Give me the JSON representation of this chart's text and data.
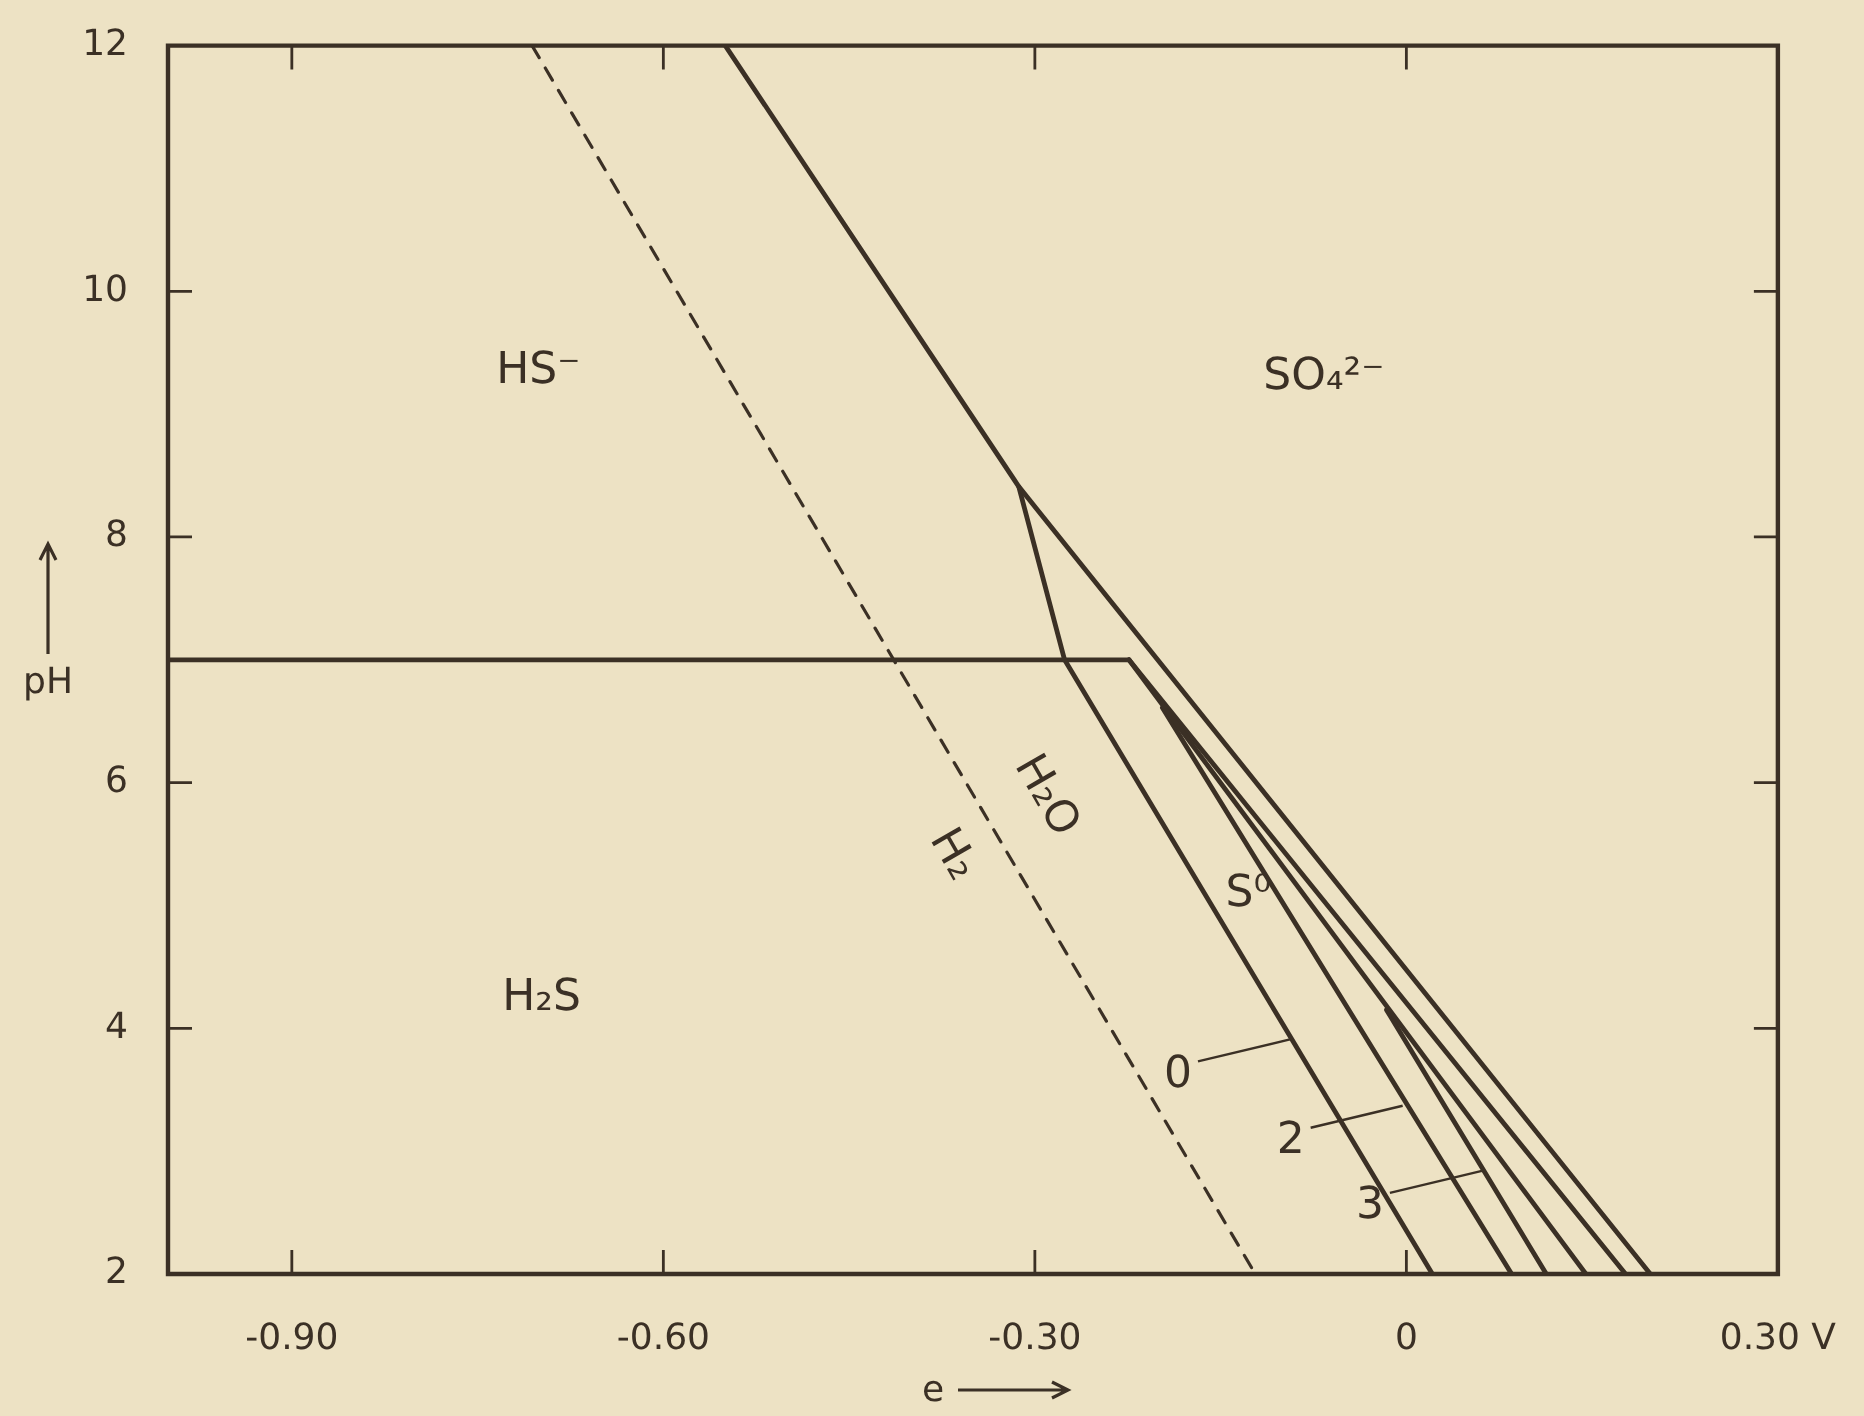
{
  "chart_data": {
    "type": "line",
    "xlabel": "e",
    "ylabel": "pH",
    "xlim": [
      -1.0,
      0.3
    ],
    "ylim": [
      2,
      12
    ],
    "xticks": [
      {
        "value": -0.9,
        "label": "-0.90"
      },
      {
        "value": -0.6,
        "label": "-0.60"
      },
      {
        "value": -0.3,
        "label": "-0.30"
      },
      0,
      {
        "value": 0.3,
        "label": "0.30 V"
      }
    ],
    "yticks": [
      2,
      4,
      6,
      8,
      10,
      12
    ],
    "grid": false,
    "legend": false,
    "marker": "none",
    "line_style": "solid",
    "series": [
      {
        "color": "#3b3025",
        "x": [
          -0.55,
          -0.313,
          0.197
        ],
        "values": [
          12,
          8.41,
          2
        ]
      },
      {
        "color": "#3b3025",
        "x": [
          -0.313,
          -0.276,
          0.021
        ],
        "values": [
          8.41,
          7,
          2
        ]
      },
      {
        "color": "#3b3025",
        "x": [
          -1.0,
          -0.224
        ],
        "values": [
          7,
          7
        ]
      },
      {
        "color": "#3b3025",
        "x": [
          -0.224,
          0.145
        ],
        "values": [
          7,
          2
        ]
      },
      {
        "color": "#3b3025",
        "x": [
          -0.224,
          0.177
        ],
        "values": [
          7,
          2
        ]
      },
      {
        "color": "#3b3025",
        "x": [
          -0.197,
          0.085
        ],
        "values": [
          6.61,
          2
        ]
      },
      {
        "color": "#3b3025",
        "x": [
          -0.016,
          0.113
        ],
        "values": [
          4.15,
          2
        ]
      },
      {
        "color": "#3b3025",
        "line_style": "dashed",
        "x": [
          -0.706,
          -0.122
        ],
        "values": [
          12,
          2
        ]
      }
    ],
    "annotations": [
      "HS⁻",
      "SO₄²⁻",
      "H₂S",
      "H₂O",
      "H₂",
      "S⁰",
      {
        "text": "0",
        "x": -0.094,
        "y": 3.91
      },
      {
        "text": "2",
        "x": -0.003,
        "y": 3.37
      },
      {
        "text": "3",
        "x": 0.061,
        "y": 2.84
      }
    ]
  }
}
